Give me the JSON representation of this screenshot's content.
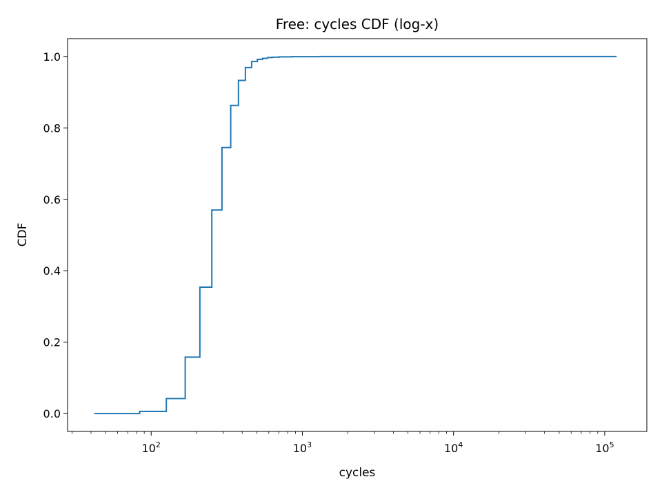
{
  "chart_data": {
    "type": "line",
    "title": "Free: cycles CDF (log-x)",
    "xlabel": "cycles",
    "ylabel": "CDF",
    "xscale": "log",
    "xlim": [
      28,
      190000
    ],
    "ylim": [
      -0.05,
      1.05
    ],
    "grid": false,
    "legend": "none",
    "line_color": "#1f77b4",
    "x_ticks": [
      {
        "value": 100,
        "base": "10",
        "exp": "2"
      },
      {
        "value": 1000,
        "base": "10",
        "exp": "3"
      },
      {
        "value": 10000,
        "base": "10",
        "exp": "4"
      },
      {
        "value": 100000,
        "base": "10",
        "exp": "5"
      }
    ],
    "y_ticks": [
      {
        "value": 0.0,
        "label": "0.0"
      },
      {
        "value": 0.2,
        "label": "0.2"
      },
      {
        "value": 0.4,
        "label": "0.4"
      },
      {
        "value": 0.6,
        "label": "0.6"
      },
      {
        "value": 0.8,
        "label": "0.8"
      },
      {
        "value": 1.0,
        "label": "1.0"
      }
    ],
    "series": [
      {
        "drawstyle": "steps-post",
        "x": [
          42,
          84,
          126,
          168,
          210,
          252,
          294,
          336,
          378,
          420,
          462,
          504,
          546,
          588,
          630,
          700,
          850,
          1300,
          120000
        ],
        "y": [
          0.0,
          0.006,
          0.042,
          0.158,
          0.354,
          0.57,
          0.745,
          0.863,
          0.933,
          0.969,
          0.986,
          0.992,
          0.995,
          0.997,
          0.998,
          0.999,
          0.9995,
          1.0,
          1.0
        ]
      }
    ]
  }
}
